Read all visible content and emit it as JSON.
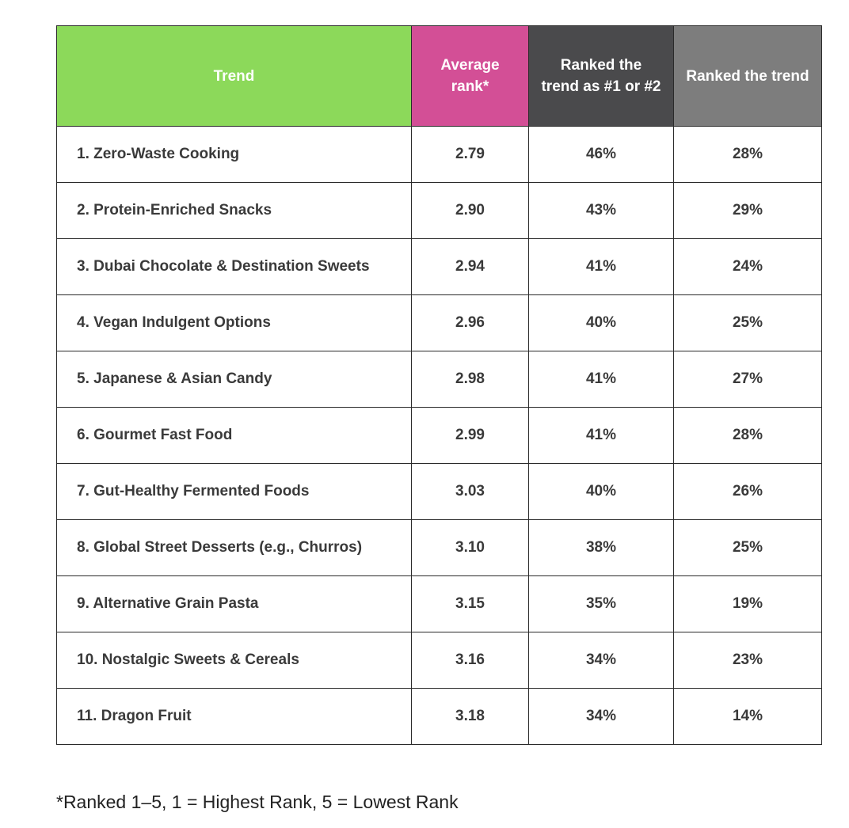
{
  "chart_data": {
    "type": "table",
    "columns": [
      "Trend",
      "Average rank*",
      "Ranked the trend as #1 or #2",
      "Ranked the trend"
    ],
    "header_colors": {
      "trend": "#8cd95a",
      "average_rank": "#d34f96",
      "ranked_top": "#4a4a4c",
      "ranked": "#7d7d7d"
    },
    "rows": [
      {
        "trend": "1. Zero-Waste Cooking",
        "average_rank": "2.79",
        "ranked_top": "46%",
        "ranked": "28%"
      },
      {
        "trend": "2. Protein-Enriched Snacks",
        "average_rank": "2.90",
        "ranked_top": "43%",
        "ranked": "29%"
      },
      {
        "trend": "3. Dubai Chocolate & Destination Sweets",
        "average_rank": "2.94",
        "ranked_top": "41%",
        "ranked": "24%"
      },
      {
        "trend": "4. Vegan Indulgent Options",
        "average_rank": "2.96",
        "ranked_top": "40%",
        "ranked": "25%"
      },
      {
        "trend": "5. Japanese & Asian Candy",
        "average_rank": "2.98",
        "ranked_top": "41%",
        "ranked": "27%"
      },
      {
        "trend": "6. Gourmet Fast Food",
        "average_rank": "2.99",
        "ranked_top": "41%",
        "ranked": "28%"
      },
      {
        "trend": "7. Gut-Healthy Fermented Foods",
        "average_rank": "3.03",
        "ranked_top": "40%",
        "ranked": "26%"
      },
      {
        "trend": "8. Global Street Desserts (e.g., Churros)",
        "average_rank": "3.10",
        "ranked_top": "38%",
        "ranked": "25%"
      },
      {
        "trend": "9. Alternative Grain Pasta",
        "average_rank": "3.15",
        "ranked_top": "35%",
        "ranked": "19%"
      },
      {
        "trend": "10. Nostalgic Sweets & Cereals",
        "average_rank": "3.16",
        "ranked_top": "34%",
        "ranked": "23%"
      },
      {
        "trend": "11. Dragon Fruit",
        "average_rank": "3.18",
        "ranked_top": "34%",
        "ranked": "14%"
      }
    ],
    "footnote": "*Ranked 1–5, 1 = Highest Rank, 5 = Lowest Rank"
  }
}
